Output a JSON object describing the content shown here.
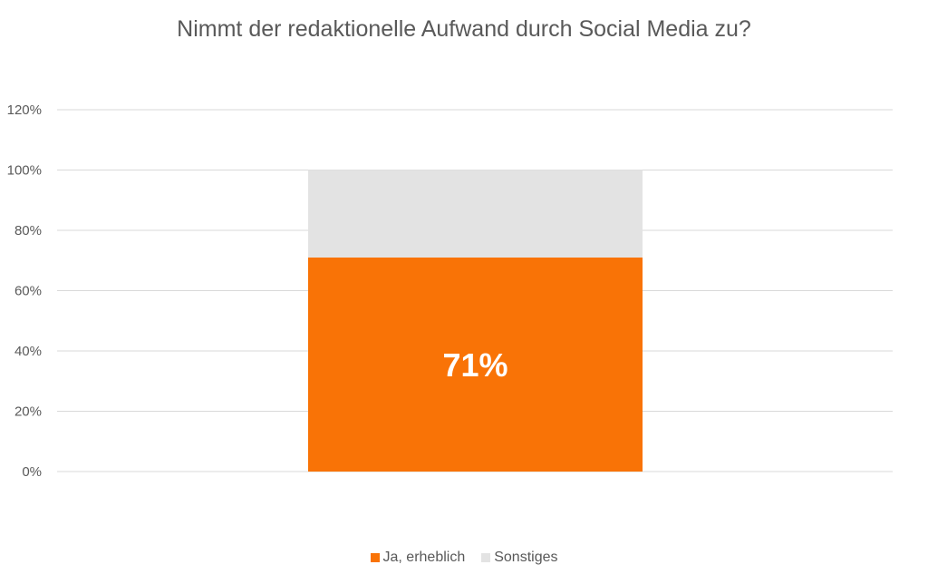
{
  "chart_data": {
    "type": "bar",
    "stacked": true,
    "title": "Nimmt der redaktionelle Aufwand durch Social Media zu?",
    "categories": [
      ""
    ],
    "series": [
      {
        "name": "Ja, erheblich",
        "values": [
          71
        ],
        "color": "#F97306",
        "data_label": "71%"
      },
      {
        "name": "Sonstiges",
        "values": [
          29
        ],
        "color": "#E3E3E3"
      }
    ],
    "ylim": [
      0,
      120
    ],
    "yticks": [
      0,
      20,
      40,
      60,
      80,
      100,
      120
    ],
    "ytick_labels": [
      "0%",
      "20%",
      "40%",
      "60%",
      "80%",
      "100%",
      "120%"
    ],
    "xlabel": "",
    "ylabel": "",
    "grid": true,
    "legend": "bottom"
  }
}
